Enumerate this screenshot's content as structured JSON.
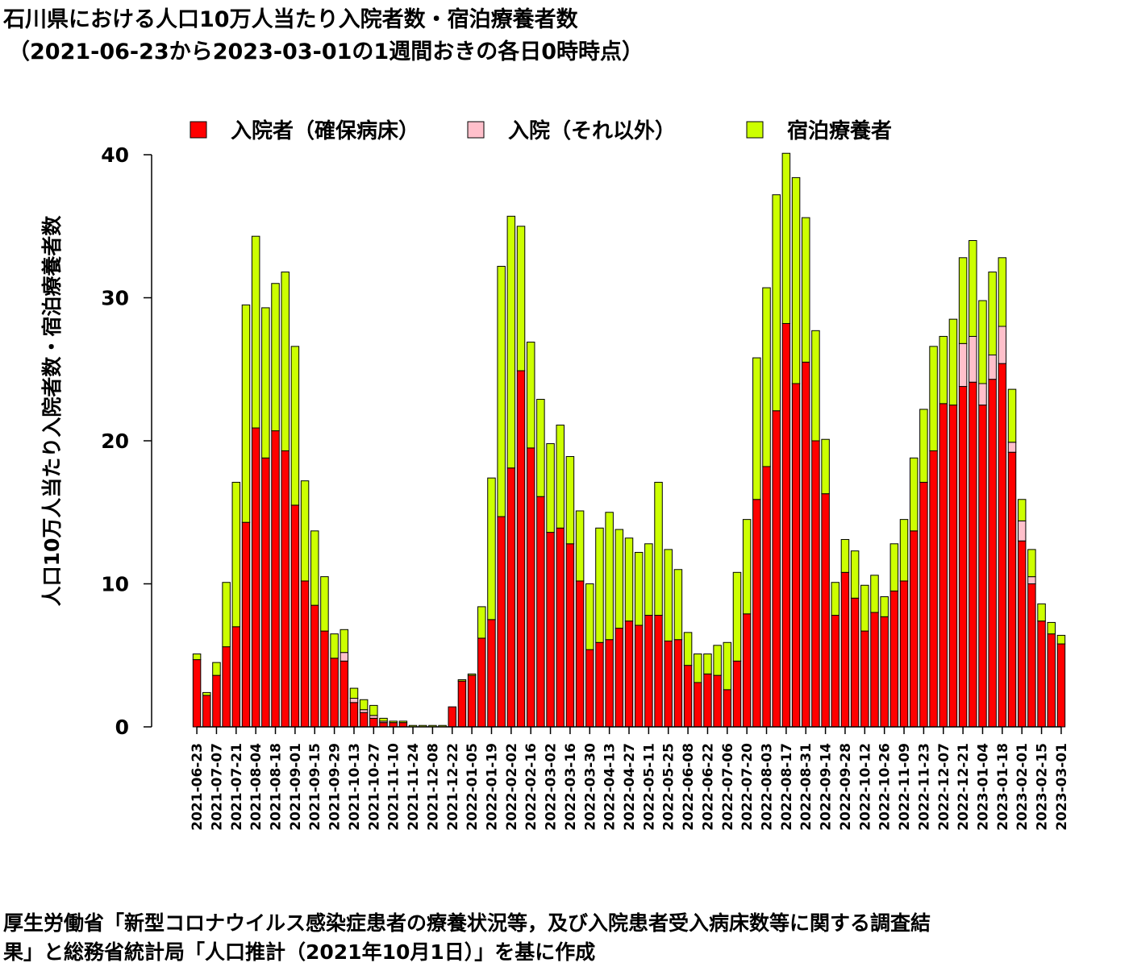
{
  "title": {
    "line1": "石川県における人口10万人当たり入院者数・宿泊療養者数",
    "line2": "（2021-06-23から2023-03-01の1週間おきの各日0時時点）"
  },
  "source_note": {
    "line1": "厚生労働省「新型コロナウイルス感染症患者の療養状況等，及び入院患者受入病床数等に関する調査結",
    "line2": "果」と総務省統計局「人口推計（2021年10月1日）」を基に作成"
  },
  "chart_data": {
    "type": "bar",
    "stacked": true,
    "ylabel": "人口10万人当たり入院者数・宿泊療養者数",
    "ylim": [
      0,
      40
    ],
    "yticks": [
      0,
      10,
      20,
      30,
      40
    ],
    "legend_placement": "top",
    "grid": false,
    "x": [
      "2021-06-23",
      "2021-06-30",
      "2021-07-07",
      "2021-07-14",
      "2021-07-21",
      "2021-07-28",
      "2021-08-04",
      "2021-08-11",
      "2021-08-18",
      "2021-08-25",
      "2021-09-01",
      "2021-09-08",
      "2021-09-15",
      "2021-09-22",
      "2021-09-29",
      "2021-10-06",
      "2021-10-13",
      "2021-10-20",
      "2021-10-27",
      "2021-11-03",
      "2021-11-10",
      "2021-11-17",
      "2021-11-24",
      "2021-12-01",
      "2021-12-08",
      "2021-12-15",
      "2021-12-22",
      "2021-12-29",
      "2022-01-05",
      "2022-01-12",
      "2022-01-19",
      "2022-01-26",
      "2022-02-02",
      "2022-02-09",
      "2022-02-16",
      "2022-02-23",
      "2022-03-02",
      "2022-03-09",
      "2022-03-16",
      "2022-03-23",
      "2022-03-30",
      "2022-04-06",
      "2022-04-13",
      "2022-04-20",
      "2022-04-27",
      "2022-05-04",
      "2022-05-11",
      "2022-05-18",
      "2022-05-25",
      "2022-06-01",
      "2022-06-08",
      "2022-06-15",
      "2022-06-22",
      "2022-06-29",
      "2022-07-06",
      "2022-07-13",
      "2022-07-20",
      "2022-07-27",
      "2022-08-03",
      "2022-08-10",
      "2022-08-17",
      "2022-08-24",
      "2022-08-31",
      "2022-09-07",
      "2022-09-14",
      "2022-09-21",
      "2022-09-28",
      "2022-10-05",
      "2022-10-12",
      "2022-10-19",
      "2022-10-26",
      "2022-11-02",
      "2022-11-09",
      "2022-11-16",
      "2022-11-23",
      "2022-11-30",
      "2022-12-07",
      "2022-12-14",
      "2022-12-21",
      "2022-12-28",
      "2023-01-04",
      "2023-01-11",
      "2023-01-18",
      "2023-01-25",
      "2023-02-01",
      "2023-02-08",
      "2023-02-15",
      "2023-02-22",
      "2023-03-01"
    ],
    "xtick_labels": [
      "2021-06-23",
      "2021-07-07",
      "2021-07-21",
      "2021-08-04",
      "2021-08-18",
      "2021-09-01",
      "2021-09-15",
      "2021-09-29",
      "2021-10-13",
      "2021-10-27",
      "2021-11-10",
      "2021-11-24",
      "2021-12-08",
      "2021-12-22",
      "2022-01-05",
      "2022-01-19",
      "2022-02-02",
      "2022-02-16",
      "2022-03-02",
      "2022-03-16",
      "2022-03-30",
      "2022-04-13",
      "2022-04-27",
      "2022-05-11",
      "2022-05-25",
      "2022-06-08",
      "2022-06-22",
      "2022-07-06",
      "2022-07-20",
      "2022-08-03",
      "2022-08-17",
      "2022-08-31",
      "2022-09-14",
      "2022-09-28",
      "2022-10-12",
      "2022-10-26",
      "2022-11-09",
      "2022-11-23",
      "2022-12-07",
      "2022-12-21",
      "2023-01-04",
      "2023-01-18",
      "2023-02-01",
      "2023-02-15",
      "2023-03-01"
    ],
    "series": [
      {
        "name": "入院者（確保病床）",
        "color": "#ff0000",
        "values": [
          4.7,
          2.2,
          3.6,
          5.6,
          7.0,
          14.3,
          20.9,
          18.8,
          20.7,
          19.3,
          15.5,
          10.2,
          8.5,
          6.7,
          4.8,
          4.6,
          1.7,
          1.0,
          0.6,
          0.3,
          0.3,
          0.3,
          0.0,
          0.0,
          0.0,
          0.0,
          1.4,
          3.2,
          3.6,
          6.2,
          7.5,
          14.7,
          18.1,
          24.9,
          19.5,
          16.1,
          13.6,
          13.9,
          12.8,
          10.2,
          5.4,
          5.9,
          6.1,
          6.9,
          7.4,
          7.1,
          7.8,
          7.8,
          6.0,
          6.1,
          4.3,
          3.1,
          3.7,
          3.6,
          2.6,
          4.6,
          7.9,
          15.9,
          18.2,
          22.1,
          28.2,
          24.0,
          25.5,
          20.0,
          16.3,
          7.8,
          10.8,
          9.0,
          6.7,
          8.0,
          7.7,
          9.5,
          10.2,
          13.7,
          17.1,
          19.3,
          22.6,
          22.5,
          23.8,
          24.1,
          22.5,
          24.3,
          25.4,
          19.2,
          13.0,
          10.0,
          7.4,
          6.5,
          5.8
        ]
      },
      {
        "name": "入院（それ以外）",
        "color": "#ffc0cb",
        "values": [
          0,
          0,
          0,
          0,
          0,
          0,
          0,
          0,
          0,
          0,
          0,
          0,
          0,
          0,
          0,
          0.6,
          0.3,
          0.2,
          0.2,
          0.1,
          0,
          0,
          0,
          0,
          0,
          0,
          0,
          0,
          0,
          0,
          0,
          0,
          0,
          0,
          0,
          0,
          0,
          0,
          0,
          0,
          0,
          0,
          0,
          0,
          0,
          0,
          0,
          0,
          0,
          0,
          0,
          0,
          0,
          0,
          0,
          0,
          0,
          0,
          0,
          0,
          0,
          0,
          0,
          0,
          0,
          0,
          0,
          0,
          0,
          0,
          0,
          0,
          0,
          0,
          0,
          0,
          0,
          0,
          3.0,
          3.2,
          1.5,
          1.7,
          2.6,
          0.7,
          1.4,
          0.5,
          0,
          0,
          0
        ]
      },
      {
        "name": "宿泊療養者",
        "color": "#ccff00",
        "values": [
          0.4,
          0.2,
          0.9,
          4.5,
          10.1,
          15.2,
          13.4,
          10.5,
          10.3,
          12.5,
          11.1,
          7.0,
          5.2,
          3.8,
          1.7,
          1.6,
          0.7,
          0.7,
          0.7,
          0.2,
          0.1,
          0.1,
          0.1,
          0.1,
          0.1,
          0.1,
          0.0,
          0.1,
          0.1,
          2.2,
          9.9,
          17.5,
          17.6,
          10.1,
          7.4,
          6.8,
          6.2,
          7.2,
          6.1,
          4.9,
          4.6,
          8.0,
          8.9,
          6.9,
          5.8,
          5.1,
          5.0,
          9.3,
          6.4,
          4.9,
          2.3,
          2.0,
          1.4,
          2.1,
          3.3,
          6.2,
          6.6,
          9.9,
          12.5,
          15.1,
          11.9,
          14.4,
          10.1,
          7.7,
          3.8,
          2.3,
          2.3,
          3.3,
          3.2,
          2.6,
          1.4,
          3.3,
          4.3,
          5.1,
          5.1,
          7.3,
          4.7,
          6.0,
          6.0,
          6.7,
          5.8,
          5.8,
          4.8,
          3.7,
          1.5,
          1.9,
          1.2,
          0.8,
          0.6
        ]
      }
    ]
  }
}
